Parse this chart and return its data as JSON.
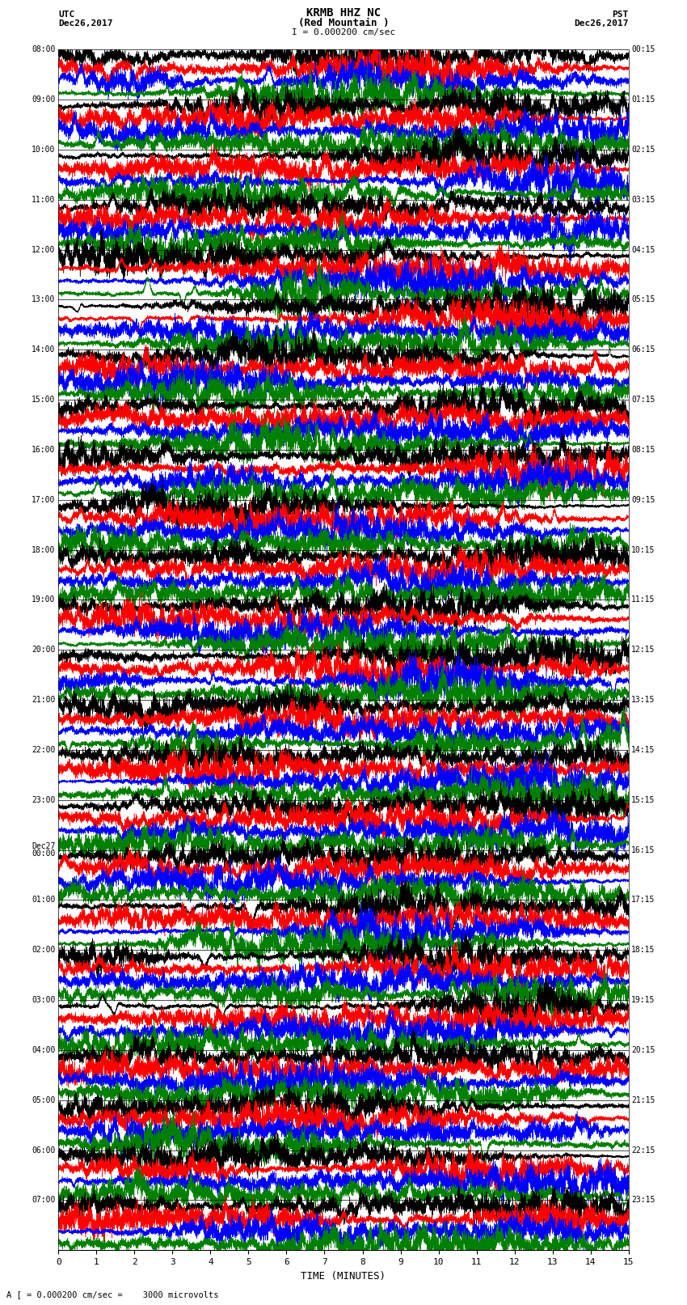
{
  "title_line1": "KRMB HHZ NC",
  "title_line2": "(Red Mountain )",
  "scale_label": "I = 0.000200 cm/sec",
  "left_header_line1": "UTC",
  "left_header_line2": "Dec26,2017",
  "right_header_line1": "PST",
  "right_header_line2": "Dec26,2017",
  "bottom_note": "A [ = 0.000200 cm/sec =    3000 microvolts",
  "xlabel": "TIME (MINUTES)",
  "left_times": [
    "08:00",
    "09:00",
    "10:00",
    "11:00",
    "12:00",
    "13:00",
    "14:00",
    "15:00",
    "16:00",
    "17:00",
    "18:00",
    "19:00",
    "20:00",
    "21:00",
    "22:00",
    "23:00",
    "Dec27\n00:00",
    "01:00",
    "02:00",
    "03:00",
    "04:00",
    "05:00",
    "06:00",
    "07:00"
  ],
  "right_times": [
    "00:15",
    "01:15",
    "02:15",
    "03:15",
    "04:15",
    "05:15",
    "06:15",
    "07:15",
    "08:15",
    "09:15",
    "10:15",
    "11:15",
    "12:15",
    "13:15",
    "14:15",
    "15:15",
    "16:15",
    "17:15",
    "18:15",
    "19:15",
    "20:15",
    "21:15",
    "22:15",
    "23:15"
  ],
  "num_rows": 24,
  "traces_per_row": 4,
  "minutes_per_row": 15,
  "colors": [
    "black",
    "red",
    "blue",
    "green"
  ],
  "fig_width": 8.5,
  "fig_height": 16.13,
  "bg_color": "white",
  "plot_bg_color": "white",
  "x_ticks": [
    0,
    1,
    2,
    3,
    4,
    5,
    6,
    7,
    8,
    9,
    10,
    11,
    12,
    13,
    14,
    15
  ],
  "samples_per_minute": 600
}
